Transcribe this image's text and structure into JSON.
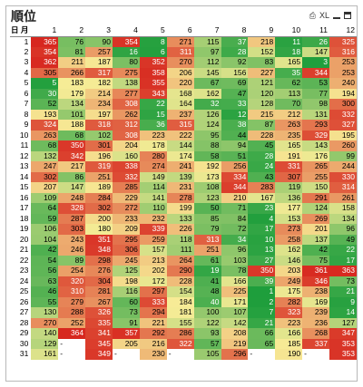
{
  "window": {
    "title": "順位",
    "buttons": [
      "print-icon",
      "XL",
      "minimize-icon",
      "maximize-icon"
    ],
    "xl_label": "XL"
  },
  "table": {
    "row_header_label": "日",
    "col_header_label": "月",
    "columns": [
      "1",
      "2",
      "3",
      "4",
      "5",
      "6",
      "7",
      "8",
      "9",
      "10",
      "11",
      "12"
    ],
    "rows": [
      {
        "day": "1",
        "vals": [
          365,
          76,
          90,
          354,
          8,
          271,
          115,
          37,
          218,
          11,
          26,
          325
        ]
      },
      {
        "day": "2",
        "vals": [
          354,
          81,
          257,
          16,
          6,
          311,
          97,
          28,
          152,
          18,
          147,
          316
        ]
      },
      {
        "day": "3",
        "vals": [
          362,
          211,
          187,
          80,
          352,
          270,
          112,
          92,
          83,
          165,
          3,
          253
        ]
      },
      {
        "day": "4",
        "vals": [
          305,
          266,
          317,
          275,
          358,
          206,
          145,
          156,
          227,
          35,
          344,
          253
        ]
      },
      {
        "day": "5",
        "vals": [
          5,
          183,
          182,
          138,
          355,
          220,
          67,
          69,
          121,
          62,
          53,
          240
        ]
      },
      {
        "day": "6",
        "vals": [
          30,
          179,
          214,
          277,
          343,
          168,
          162,
          47,
          120,
          113,
          77,
          194
        ]
      },
      {
        "day": "7",
        "vals": [
          52,
          134,
          234,
          308,
          22,
          164,
          32,
          33,
          128,
          70,
          98,
          300
        ]
      },
      {
        "day": "8",
        "vals": [
          193,
          101,
          197,
          262,
          15,
          237,
          126,
          12,
          215,
          212,
          131,
          332
        ]
      },
      {
        "day": "9",
        "vals": [
          324,
          188,
          318,
          312,
          36,
          315,
          124,
          38,
          87,
          263,
          293,
          327
        ]
      },
      {
        "day": "10",
        "vals": [
          263,
          68,
          102,
          308,
          223,
          222,
          95,
          44,
          228,
          235,
          329,
          195
        ]
      },
      {
        "day": "11",
        "vals": [
          68,
          350,
          301,
          204,
          178,
          144,
          88,
          94,
          45,
          165,
          143,
          260
        ]
      },
      {
        "day": "12",
        "vals": [
          132,
          342,
          196,
          160,
          280,
          174,
          58,
          51,
          28,
          191,
          176,
          99
        ]
      },
      {
        "day": "13",
        "vals": [
          247,
          217,
          319,
          338,
          274,
          241,
          192,
          256,
          24,
          331,
          265,
          244
        ]
      },
      {
        "day": "14",
        "vals": [
          302,
          86,
          251,
          332,
          149,
          139,
          173,
          334,
          43,
          307,
          255,
          330
        ]
      },
      {
        "day": "15",
        "vals": [
          207,
          147,
          189,
          285,
          114,
          231,
          108,
          344,
          283,
          119,
          150,
          314
        ]
      },
      {
        "day": "16",
        "vals": [
          109,
          248,
          284,
          229,
          141,
          278,
          123,
          210,
          167,
          136,
          291,
          261
        ]
      },
      {
        "day": "17",
        "vals": [
          64,
          328,
          302,
          272,
          110,
          199,
          50,
          71,
          23,
          177,
          124,
          158
        ]
      },
      {
        "day": "18",
        "vals": [
          59,
          287,
          200,
          233,
          232,
          133,
          85,
          84,
          4,
          153,
          269,
          134
        ]
      },
      {
        "day": "19",
        "vals": [
          106,
          303,
          180,
          209,
          339,
          226,
          79,
          72,
          17,
          273,
          201,
          96
        ]
      },
      {
        "day": "20",
        "vals": [
          104,
          243,
          351,
          295,
          259,
          118,
          313,
          34,
          10,
          258,
          137,
          49
        ]
      },
      {
        "day": "21",
        "vals": [
          42,
          246,
          348,
          306,
          157,
          111,
          251,
          96,
          13,
          162,
          42,
          22
        ]
      },
      {
        "day": "22",
        "vals": [
          54,
          89,
          298,
          245,
          213,
          264,
          61,
          103,
          27,
          146,
          75,
          17
        ]
      },
      {
        "day": "23",
        "vals": [
          56,
          254,
          276,
          125,
          202,
          290,
          19,
          78,
          350,
          203,
          361,
          363
        ]
      },
      {
        "day": "24",
        "vals": [
          63,
          320,
          304,
          198,
          172,
          228,
          41,
          166,
          39,
          249,
          346,
          73
        ]
      },
      {
        "day": "25",
        "vals": [
          46,
          310,
          281,
          116,
          297,
          154,
          48,
          225,
          1,
          175,
          238,
          21
        ]
      },
      {
        "day": "26",
        "vals": [
          55,
          279,
          267,
          60,
          333,
          184,
          40,
          171,
          2,
          282,
          169,
          9
        ]
      },
      {
        "day": "27",
        "vals": [
          130,
          288,
          326,
          73,
          294,
          181,
          100,
          107,
          7,
          323,
          239,
          14
        ]
      },
      {
        "day": "28",
        "vals": [
          270,
          252,
          335,
          91,
          221,
          155,
          122,
          142,
          21,
          223,
          236,
          127
        ]
      },
      {
        "day": "29",
        "vals": [
          140,
          364,
          341,
          357,
          292,
          286,
          93,
          208,
          66,
          166,
          268,
          347
        ]
      },
      {
        "day": "30",
        "vals": [
          129,
          null,
          345,
          205,
          216,
          322,
          57,
          219,
          65,
          185,
          337,
          353
        ]
      },
      {
        "day": "31",
        "vals": [
          161,
          null,
          349,
          null,
          230,
          null,
          105,
          296,
          null,
          190,
          null,
          353
        ]
      }
    ],
    "missing_marker": "-",
    "colors": {
      "low": "#1e9e3c",
      "mid": "#f7ec96",
      "high": "#d7261e"
    }
  }
}
